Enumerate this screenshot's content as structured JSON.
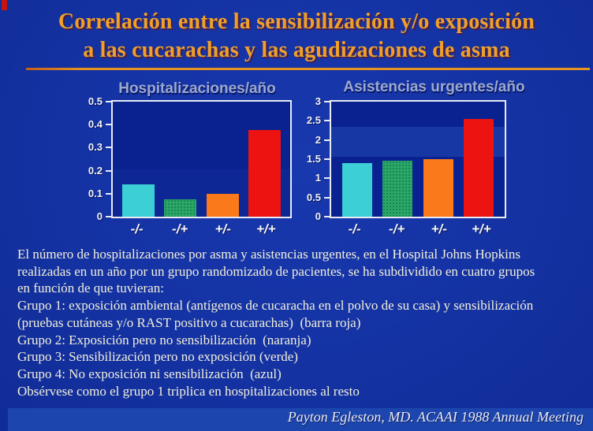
{
  "slide": {
    "title_lines": [
      "Correlación entre la sensibilización y/o exposición",
      "a las cucarachas y las agudizaciones de asma"
    ],
    "title_color": "#f0a028",
    "underline_color": "#e7941f",
    "background_color": "#1432a2"
  },
  "chart_data": [
    {
      "type": "bar",
      "title": "Hospitalizaciones/año",
      "categories": [
        "-/-",
        "-/+",
        "+/-",
        "+/+"
      ],
      "values": [
        0.14,
        0.075,
        0.1,
        0.375
      ],
      "bar_colors": [
        "#3cd0d6",
        "#2ba766",
        "#f9791b",
        "#ec1310"
      ],
      "bar_texture": [
        "plain",
        "dotted",
        "plain",
        "plain"
      ],
      "xlabel": "",
      "ylabel": "",
      "ylim": [
        0,
        0.5
      ],
      "yticks": [
        0,
        0.1,
        0.2,
        0.3,
        0.4,
        0.5
      ],
      "grid": false,
      "legend": "none",
      "plot_background": "#0a2190"
    },
    {
      "type": "bar",
      "title": "Asistencias urgentes/año",
      "categories": [
        "-/-",
        "-/+",
        "+/-",
        "+/+"
      ],
      "values": [
        1.4,
        1.45,
        1.5,
        2.55
      ],
      "bar_colors": [
        "#3cd0d6",
        "#2ba766",
        "#f9791b",
        "#ec1310"
      ],
      "bar_texture": [
        "plain",
        "dotted",
        "plain",
        "plain"
      ],
      "xlabel": "",
      "ylabel": "",
      "ylim": [
        0,
        3
      ],
      "yticks": [
        0,
        0.5,
        1,
        1.5,
        2,
        2.5,
        3
      ],
      "grid": false,
      "legend": "none",
      "plot_background": "#0a2190"
    }
  ],
  "body": {
    "text_color": "#f3f0db",
    "lines": [
      "El número de hospitalizaciones por asma y asistencias urgentes, en el Hospital Johns Hopkins",
      "realizadas en un año por un grupo randomizado de pacientes, se ha subdividido en cuatro grupos",
      "en función de que tuvieran:",
      "Grupo 1: exposición ambiental (antígenos de cucaracha en el polvo de su casa) y sensibilización",
      "(pruebas cutáneas y/o RAST positivo a cucarachas)  (barra roja)",
      "Grupo 2: Exposición pero no sensibilización  (naranja)",
      "Grupo 3: Sensibilización pero no exposición (verde)",
      "Grupo 4: No exposición ni sensibilización  (azul)",
      "Obsérvese como el grupo 1 triplica en hospitalizaciones al resto"
    ]
  },
  "footer": {
    "attribution": "Payton Egleston, MD. ACAAI 1988 Annual Meeting"
  }
}
